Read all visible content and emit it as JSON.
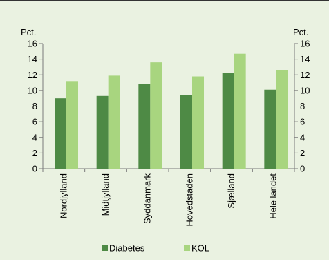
{
  "chart_data": {
    "type": "bar",
    "categories": [
      "Nordjylland",
      "Midtjylland",
      "Syddanmark",
      "Hovedstaden",
      "Sjælland",
      "Hele landet"
    ],
    "series": [
      {
        "name": "Diabetes",
        "color": "#4e8a45",
        "values": [
          9.0,
          9.3,
          10.8,
          9.4,
          12.2,
          10.1
        ]
      },
      {
        "name": "KOL",
        "color": "#a8d57f",
        "values": [
          11.2,
          11.9,
          13.6,
          11.8,
          14.7,
          12.6
        ]
      }
    ],
    "ylabel_left": "Pct.",
    "ylabel_right": "Pct.",
    "ylim": [
      0,
      16
    ],
    "yticks": [
      0,
      2,
      4,
      6,
      8,
      10,
      12,
      14,
      16
    ],
    "grid": false,
    "legend_position": "bottom-center",
    "axis_color": "#7a7a7a"
  }
}
